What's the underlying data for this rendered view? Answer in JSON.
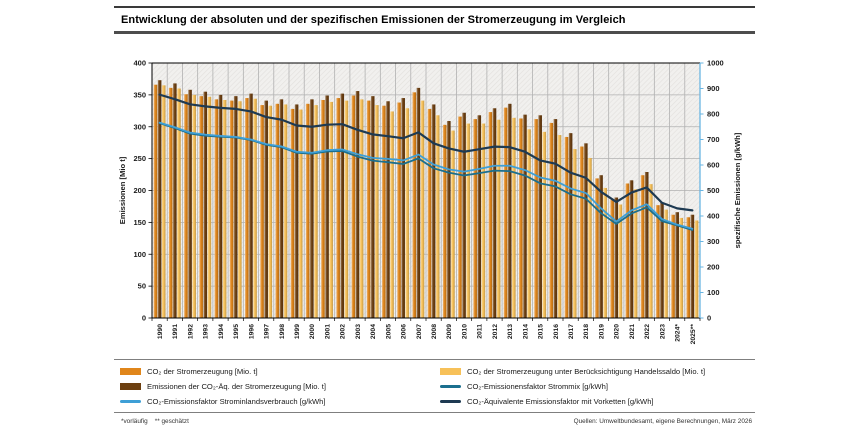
{
  "title": "Entwicklung der absoluten und der spezifischen Emissionen der Stromerzeugung im Vergleich",
  "footnotes": {
    "left": "*vorläufig    ** geschätzt",
    "right": "Quellen: Umweltbundesamt, eigene Berechnungen, März 2026"
  },
  "chart_data": {
    "type": "bar+line",
    "grid": true,
    "legend_position": "bottom",
    "categories": [
      "1990",
      "1991",
      "1992",
      "1993",
      "1994",
      "1995",
      "1996",
      "1997",
      "1998",
      "1999",
      "2000",
      "2001",
      "2002",
      "2003",
      "2004",
      "2005",
      "2006",
      "2007",
      "2008",
      "2009",
      "2010",
      "2011",
      "2012",
      "2013",
      "2014",
      "2015",
      "2016",
      "2017",
      "2018",
      "2019",
      "2020",
      "2021",
      "2022",
      "2023",
      "2024*",
      "2025**"
    ],
    "left_axis": {
      "label": "Emissionen [Mio t]",
      "min": 0,
      "max": 400,
      "step": 50
    },
    "right_axis": {
      "label": "spezifische Emissionen [g/kWh]",
      "min": 0,
      "max": 1000,
      "step": 100
    },
    "series": [
      {
        "name": "CO₂ der Stromerzeugung [Mio. t]",
        "type": "bar",
        "axis": "left",
        "color": "#E0861B",
        "values": [
          366,
          361,
          351,
          348,
          343,
          341,
          345,
          334,
          336,
          328,
          336,
          342,
          345,
          349,
          341,
          333,
          338,
          354,
          328,
          303,
          316,
          312,
          323,
          330,
          313,
          312,
          306,
          284,
          269,
          219,
          185,
          211,
          224,
          177,
          162,
          158
        ]
      },
      {
        "name": "Emissionen der CO₂-Äq. der Stromerzeugung [Mio. t]",
        "type": "bar",
        "axis": "left",
        "color": "#6D3F10",
        "values": [
          373,
          368,
          358,
          355,
          350,
          348,
          352,
          341,
          343,
          335,
          343,
          349,
          352,
          356,
          348,
          340,
          345,
          361,
          335,
          309,
          322,
          318,
          329,
          336,
          319,
          318,
          312,
          290,
          274,
          224,
          189,
          216,
          229,
          181,
          166,
          162
        ]
      },
      {
        "name": "CO₂  der Stromerzeugung unter Berücksichtigung Handelssaldo [Mio. t]",
        "type": "bar",
        "axis": "left",
        "color": "#F7C159",
        "values": [
          365,
          360,
          350,
          347,
          342,
          340,
          344,
          333,
          335,
          327,
          334,
          339,
          341,
          343,
          334,
          324,
          329,
          341,
          318,
          294,
          305,
          305,
          311,
          314,
          296,
          292,
          287,
          265,
          251,
          204,
          178,
          202,
          210,
          170,
          157,
          153
        ]
      },
      {
        "name": "CO₂-Emissionensfaktor Strommix [g/kWh]",
        "type": "line",
        "axis": "right",
        "color": "#1B6F8E",
        "values": [
          764,
          745,
          723,
          715,
          711,
          708,
          698,
          679,
          670,
          648,
          644,
          653,
          655,
          633,
          617,
          611,
          604,
          626,
          587,
          570,
          559,
          568,
          578,
          576,
          559,
          528,
          516,
          485,
          468,
          411,
          369,
          410,
          434,
          380,
          363,
          345
        ]
      },
      {
        "name": "CO₂-Emissionsfaktor Strominlandsverbrauch [g/kWh]",
        "type": "line",
        "axis": "right",
        "color": "#3E9FD6",
        "values": [
          766,
          748,
          727,
          719,
          714,
          710,
          700,
          682,
          673,
          652,
          648,
          658,
          661,
          642,
          628,
          624,
          618,
          641,
          602,
          583,
          574,
          585,
          597,
          597,
          580,
          551,
          538,
          508,
          490,
          430,
          378,
          422,
          446,
          388,
          366,
          350
        ]
      },
      {
        "name": "CO₂-Äquivalente   Emissionsfaktor mit Vorketten [g/kWh]",
        "type": "line",
        "axis": "right",
        "color": "#1E3A52",
        "values": [
          876,
          858,
          838,
          830,
          824,
          820,
          810,
          788,
          778,
          755,
          750,
          758,
          760,
          738,
          720,
          713,
          705,
          728,
          685,
          665,
          652,
          662,
          672,
          670,
          652,
          618,
          605,
          570,
          550,
          495,
          455,
          492,
          512,
          452,
          430,
          422
        ]
      }
    ]
  },
  "legend": {
    "columns": [
      [
        0,
        1,
        4
      ],
      [
        2,
        3,
        5
      ]
    ]
  }
}
